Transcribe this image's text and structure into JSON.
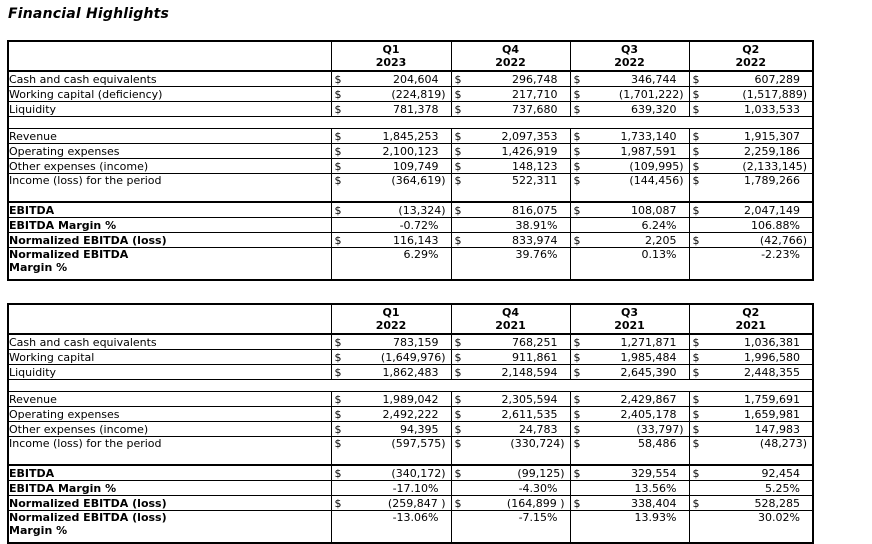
{
  "page_title": "Financial Highlights",
  "currency_symbol": "$",
  "colors": {
    "border": "#000000",
    "text": "#000000",
    "background": "#ffffff"
  },
  "tables": [
    {
      "name": "financial-highlights-2023-2022",
      "column_headers": [
        {
          "quarter": "Q1",
          "year": "2023"
        },
        {
          "quarter": "Q4",
          "year": "2022"
        },
        {
          "quarter": "Q3",
          "year": "2022"
        },
        {
          "quarter": "Q2",
          "year": "2022"
        }
      ],
      "rows": [
        {
          "label": "Cash and cash equivalents",
          "type": "money",
          "values": [
            "204,604",
            "296,748",
            "346,744",
            "607,289"
          ]
        },
        {
          "label": "Working capital (deficiency)",
          "type": "money",
          "values": [
            "(224,819)",
            "217,710",
            "(1,701,222)",
            "(1,517,889)"
          ]
        },
        {
          "label": "Liquidity",
          "type": "money",
          "values": [
            "781,378",
            "737,680",
            "639,320",
            "1,033,533"
          ]
        },
        {
          "type": "spacer"
        },
        {
          "label": "Revenue",
          "type": "money",
          "values": [
            "1,845,253",
            "2,097,353",
            "1,733,140",
            "1,915,307"
          ]
        },
        {
          "label": "Operating expenses",
          "type": "money",
          "values": [
            "2,100,123",
            "1,426,919",
            "1,987,591",
            "2,259,186"
          ]
        },
        {
          "label": "Other expenses (income)",
          "type": "money",
          "values": [
            "109,749",
            "148,123",
            "(109,995)",
            "(2,133,145)"
          ]
        },
        {
          "label": "Income (loss) for the period",
          "type": "money",
          "tall": true,
          "thick_bottom": true,
          "values": [
            "(364,619)",
            "522,311",
            "(144,456)",
            "1,789,266"
          ]
        },
        {
          "label": "EBITDA",
          "type": "money",
          "bold": true,
          "values": [
            "(13,324)",
            "816,075",
            "108,087",
            "2,047,149"
          ]
        },
        {
          "label": "EBITDA Margin %",
          "type": "percent",
          "bold": true,
          "values": [
            "-0.72%",
            "38.91%",
            "6.24%",
            "106.88%"
          ]
        },
        {
          "label": "Normalized EBITDA (loss)",
          "type": "money",
          "bold": true,
          "values": [
            "116,143",
            "833,974",
            "2,205",
            "(42,766)"
          ]
        },
        {
          "label": "Normalized EBITDA\nMargin %",
          "type": "percent",
          "bold": true,
          "tall2": true,
          "values": [
            "6.29%",
            "39.76%",
            "0.13%",
            "-2.23%"
          ]
        }
      ]
    },
    {
      "name": "financial-highlights-2022-2021",
      "column_headers": [
        {
          "quarter": "Q1",
          "year": "2022"
        },
        {
          "quarter": "Q4",
          "year": "2021"
        },
        {
          "quarter": "Q3",
          "year": "2021"
        },
        {
          "quarter": "Q2",
          "year": "2021"
        }
      ],
      "rows": [
        {
          "label": "Cash and cash equivalents",
          "type": "money",
          "values": [
            "783,159",
            "768,251",
            "1,271,871",
            "1,036,381"
          ]
        },
        {
          "label": "Working capital",
          "type": "money",
          "values": [
            "(1,649,976)",
            "911,861",
            "1,985,484",
            "1,996,580"
          ]
        },
        {
          "label": "Liquidity",
          "type": "money",
          "values": [
            "1,862,483",
            "2,148,594",
            "2,645,390",
            "2,448,355"
          ]
        },
        {
          "type": "spacer"
        },
        {
          "label": "Revenue",
          "type": "money",
          "values": [
            "1,989,042",
            "2,305,594",
            "2,429,867",
            "1,759,691"
          ]
        },
        {
          "label": "Operating expenses",
          "type": "money",
          "values": [
            "2,492,222",
            "2,611,535",
            "2,405,178",
            "1,659,981"
          ]
        },
        {
          "label": "Other expenses (income)",
          "type": "money",
          "values": [
            "94,395",
            "24,783",
            "(33,797)",
            "147,983"
          ]
        },
        {
          "label": "Income (loss) for the period",
          "type": "money",
          "tall": true,
          "thick_bottom": true,
          "values": [
            "(597,575)",
            "(330,724)",
            "58,486",
            "(48,273)"
          ]
        },
        {
          "label": "EBITDA",
          "type": "money",
          "bold": true,
          "values": [
            "(340,172)",
            "(99,125)",
            "329,554",
            "92,454"
          ]
        },
        {
          "label": "EBITDA Margin %",
          "type": "percent",
          "bold": true,
          "values": [
            "-17.10%",
            "-4.30%",
            "13.56%",
            "5.25%"
          ]
        },
        {
          "label": "Normalized EBITDA (loss)",
          "type": "money",
          "bold": true,
          "values": [
            "(259,847 )",
            "(164,899 )",
            "338,404",
            "528,285"
          ]
        },
        {
          "label": "Normalized EBITDA (loss)\nMargin %",
          "type": "percent",
          "bold": true,
          "tall2": true,
          "values": [
            "-13.06%",
            "-7.15%",
            "13.93%",
            "30.02%"
          ]
        }
      ]
    }
  ]
}
